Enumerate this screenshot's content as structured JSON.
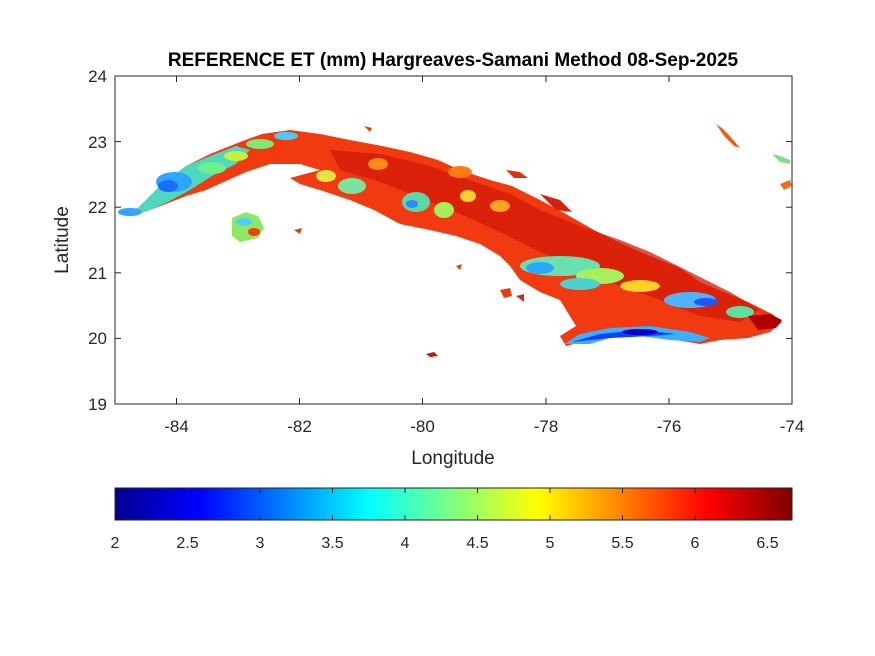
{
  "title": "REFERENCE ET (mm) Hargreaves-Samani Method  08-Sep-2025",
  "xlabel": "Longitude",
  "ylabel": "Latitude",
  "xticks": [
    "-84",
    "-82",
    "-80",
    "-78",
    "-76",
    "-74"
  ],
  "yticks": [
    "24",
    "23",
    "22",
    "21",
    "20",
    "19"
  ],
  "colorbar": {
    "ticks": [
      "2",
      "2.5",
      "3",
      "3.5",
      "4",
      "4.5",
      "5",
      "5.5",
      "6",
      "6.5"
    ],
    "range": [
      2,
      6.67
    ],
    "colormap": "jet"
  },
  "map": {
    "xlim": [
      -85,
      -74
    ],
    "ylim": [
      19,
      24
    ],
    "grid": false,
    "colors": {
      "low": "#0000ff",
      "mid_low": "#00ffff",
      "mid": "#ffff00",
      "high": "#ff0000",
      "max": "#800000"
    }
  }
}
